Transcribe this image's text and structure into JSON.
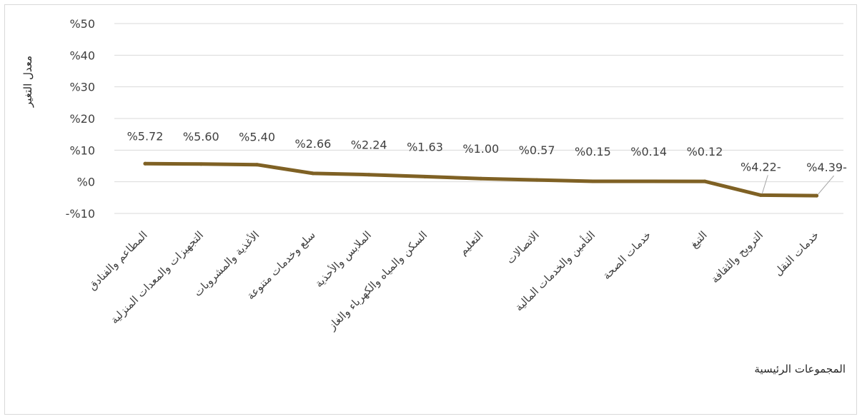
{
  "chart_data": {
    "type": "line",
    "categories": [
      "المطاعم والفنادق",
      "التجهيزات والمعدات المنزلية",
      "الأغذية والمشروبات",
      "سلع وخدمات متنوعة",
      "الملابس والأحذية",
      "السكن والمياه والكهرباء والغاز",
      "التعليم",
      "الاتصالات",
      "التأمين والخدمات المالية",
      "خدمات الصحة",
      "التبغ",
      "الترويح والثقافة",
      "خدمات النقل"
    ],
    "values": [
      5.72,
      5.6,
      5.4,
      2.66,
      2.24,
      1.63,
      1.0,
      0.57,
      0.15,
      0.14,
      0.12,
      -4.22,
      -4.39
    ],
    "data_labels": [
      "%5.72",
      "%5.60",
      "%5.40",
      "%2.66",
      "%2.24",
      "%1.63",
      "%1.00",
      "%0.57",
      "%0.15",
      "%0.14",
      "%0.12",
      "%4.22-",
      "%4.39-"
    ],
    "y_ticks": [
      50,
      40,
      30,
      20,
      10,
      0,
      -10
    ],
    "y_tick_labels": [
      "%50",
      "%40",
      "%30",
      "%20",
      "%10",
      "%0",
      "-%10"
    ],
    "ylim": [
      -10,
      50
    ],
    "xlabel": "المجموعات الرئيسية",
    "ylabel": "معدل التغير",
    "grid": true,
    "legend": "none",
    "line_color": "#7f6124",
    "grid_color": "#d9d9d9"
  }
}
